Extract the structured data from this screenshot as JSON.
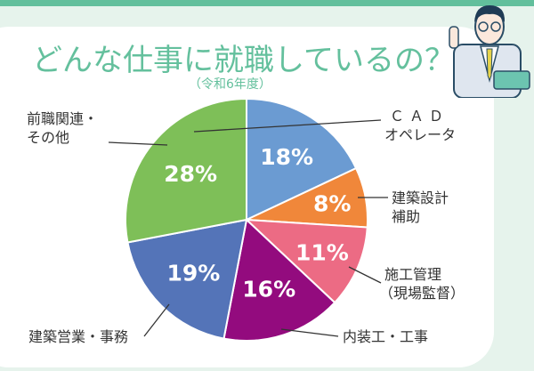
{
  "header": {
    "title": "どんな仕事に就職しているの？",
    "subtitle": "（令和6年度）"
  },
  "chart_data": {
    "type": "pie",
    "title": "どんな仕事に就職しているの？",
    "subtitle": "（令和6年度）",
    "slices": [
      {
        "label": "CAD オペレータ",
        "label_lines": [
          "ＣＡＤ",
          "オペレータ"
        ],
        "value": 18,
        "value_label": "18%",
        "color": "#6b9bd2"
      },
      {
        "label": "建築設計補助",
        "label_lines": [
          "建築設計",
          "補助"
        ],
        "value": 8,
        "value_label": "8%",
        "color": "#f0873a"
      },
      {
        "label": "施工管理（現場監督）",
        "label_lines": [
          "施工管理",
          "（現場監督）"
        ],
        "value": 11,
        "value_label": "11%",
        "color": "#ec6b84"
      },
      {
        "label": "内装工・工事",
        "label_lines": [
          "内装工・工事"
        ],
        "value": 16,
        "value_label": "16%",
        "color": "#930b7e"
      },
      {
        "label": "建築営業・事務",
        "label_lines": [
          "建築営業・事務"
        ],
        "value": 19,
        "value_label": "19%",
        "color": "#5474b8"
      },
      {
        "label": "前職関連・その他",
        "label_lines": [
          "前職関連・",
          "その他"
        ],
        "value": 28,
        "value_label": "28%",
        "color": "#7ebf58"
      }
    ],
    "start": "top",
    "direction": "clockwise"
  },
  "colors": {
    "accent": "#64c09d",
    "background": "#e6f3ec",
    "topbar": "#62bf9c"
  }
}
